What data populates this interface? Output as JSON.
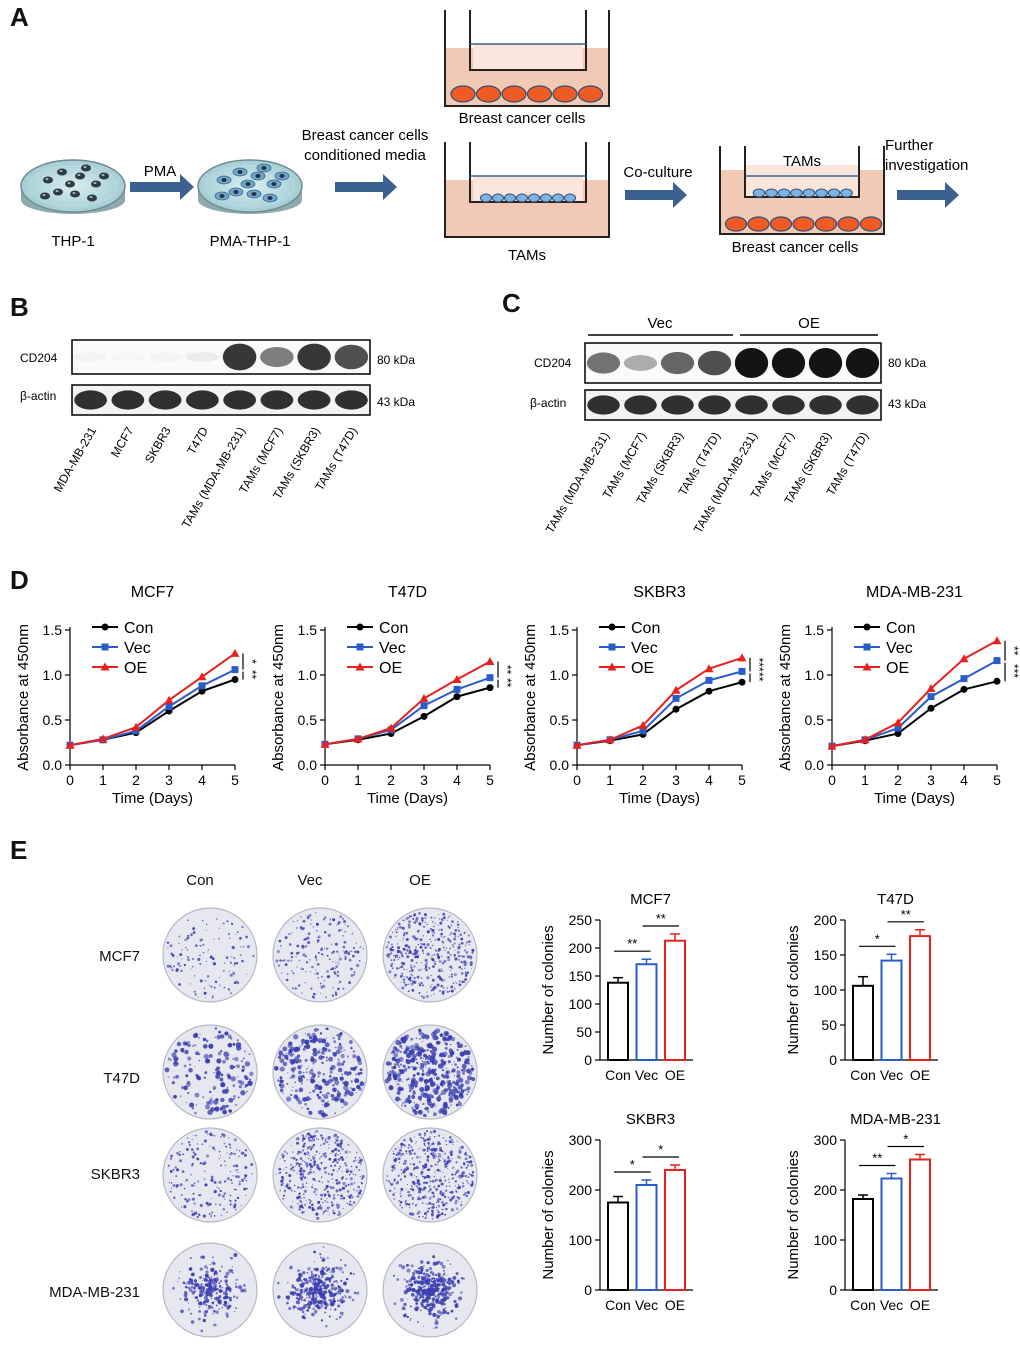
{
  "panels": {
    "a": "A",
    "b": "B",
    "c": "C",
    "d": "D",
    "e": "E"
  },
  "panel_a": {
    "thp1": "THP-1",
    "pma": "PMA",
    "pma_thp1": "PMA-THP-1",
    "conditioned_line1": "Breast cancer cells",
    "conditioned_line2": "conditioned media",
    "breast_cancer_cells_top": "Breast cancer cells",
    "tams": "TAMs",
    "coculture": "Co-culture",
    "tams_inner": "TAMs",
    "breast_cancer_cells_bottom": "Breast cancer cells",
    "further_line1": "Further",
    "further_line2": "investigation",
    "colors": {
      "dish": "#bfe0e4",
      "cell": "#2f3c46",
      "arrow": "#3a6190",
      "medium": "#f2c9b5",
      "tam": "#7fb2e0",
      "cancer": "#f05a24"
    }
  },
  "panel_b": {
    "cd204": "CD204",
    "actin": "β-actin",
    "kda80": "80 kDa",
    "kda43": "43 kDa",
    "lanes": [
      "MDA-MB-231",
      "MCF7",
      "SKBR3",
      "T47D",
      "TAMs (MDA-MB-231)",
      "TAMs (MCF7)",
      "TAMs (SKBR3)",
      "TAMs (T47D)"
    ],
    "cd204_intensity": [
      0.05,
      0.04,
      0.05,
      0.08,
      0.85,
      0.55,
      0.85,
      0.75
    ],
    "actin_intensity": [
      0.9,
      0.9,
      0.9,
      0.9,
      0.9,
      0.9,
      0.9,
      0.9
    ]
  },
  "panel_c": {
    "vec": "Vec",
    "oe": "OE",
    "cd204": "CD204",
    "actin": "β-actin",
    "kda80": "80 kDa",
    "kda43": "43 kDa",
    "lanes": [
      "TAMs (MDA-MB-231)",
      "TAMs (MCF7)",
      "TAMs (SKBR3)",
      "TAMs (T47D)",
      "TAMs (MDA-MB-231)",
      "TAMs (MCF7)",
      "TAMs (SKBR3)",
      "TAMs (T47D)"
    ],
    "cd204_intensity": [
      0.6,
      0.35,
      0.65,
      0.75,
      1.0,
      1.0,
      1.0,
      1.0
    ],
    "actin_intensity": [
      0.9,
      0.9,
      0.9,
      0.9,
      0.9,
      0.9,
      0.9,
      0.9
    ]
  },
  "chart_data": [
    {
      "type": "line",
      "title": "MCF7",
      "xlabel": "Time (Days)",
      "ylabel": "Absorbance at 450nm",
      "x": [
        0,
        1,
        2,
        3,
        4,
        5
      ],
      "xlim": [
        0,
        5
      ],
      "ylim": [
        0,
        1.5
      ],
      "yticks": [
        "0.0",
        "0.5",
        "1.0",
        "1.5"
      ],
      "series": [
        {
          "name": "Con",
          "values": [
            0.22,
            0.28,
            0.36,
            0.6,
            0.82,
            0.95
          ]
        },
        {
          "name": "Vec",
          "values": [
            0.22,
            0.28,
            0.38,
            0.65,
            0.88,
            1.06
          ]
        },
        {
          "name": "OE",
          "values": [
            0.22,
            0.29,
            0.42,
            0.72,
            0.98,
            1.24
          ]
        }
      ],
      "sig": [
        "*",
        "**"
      ]
    },
    {
      "type": "line",
      "title": "T47D",
      "xlabel": "Time (Days)",
      "ylabel": "Absorbance at 450nm",
      "x": [
        0,
        1,
        2,
        3,
        4,
        5
      ],
      "xlim": [
        0,
        5
      ],
      "ylim": [
        0,
        1.5
      ],
      "yticks": [
        "0.0",
        "0.5",
        "1.0",
        "1.5"
      ],
      "series": [
        {
          "name": "Con",
          "values": [
            0.23,
            0.28,
            0.35,
            0.54,
            0.76,
            0.86
          ]
        },
        {
          "name": "Vec",
          "values": [
            0.23,
            0.29,
            0.39,
            0.66,
            0.84,
            0.97
          ]
        },
        {
          "name": "OE",
          "values": [
            0.23,
            0.29,
            0.41,
            0.74,
            0.95,
            1.15
          ]
        }
      ],
      "sig": [
        "**",
        "**"
      ]
    },
    {
      "type": "line",
      "title": "SKBR3",
      "xlabel": "Time (Days)",
      "ylabel": "Absorbance at 450nm",
      "x": [
        0,
        1,
        2,
        3,
        4,
        5
      ],
      "xlim": [
        0,
        5
      ],
      "ylim": [
        0,
        1.5
      ],
      "yticks": [
        "0.0",
        "0.5",
        "1.0",
        "1.5"
      ],
      "series": [
        {
          "name": "Con",
          "values": [
            0.22,
            0.27,
            0.34,
            0.62,
            0.82,
            0.92
          ]
        },
        {
          "name": "Vec",
          "values": [
            0.22,
            0.28,
            0.38,
            0.74,
            0.94,
            1.04
          ]
        },
        {
          "name": "OE",
          "values": [
            0.22,
            0.28,
            0.44,
            0.83,
            1.07,
            1.19
          ]
        }
      ],
      "sig": [
        "***",
        "**"
      ]
    },
    {
      "type": "line",
      "title": "MDA-MB-231",
      "xlabel": "Time (Days)",
      "ylabel": "Absorbance at 450nm",
      "x": [
        0,
        1,
        2,
        3,
        4,
        5
      ],
      "xlim": [
        0,
        5
      ],
      "ylim": [
        0,
        1.5
      ],
      "yticks": [
        "0.0",
        "0.5",
        "1.0",
        "1.5"
      ],
      "series": [
        {
          "name": "Con",
          "values": [
            0.21,
            0.27,
            0.35,
            0.63,
            0.84,
            0.93
          ]
        },
        {
          "name": "Vec",
          "values": [
            0.21,
            0.28,
            0.41,
            0.76,
            0.96,
            1.16
          ]
        },
        {
          "name": "OE",
          "values": [
            0.21,
            0.28,
            0.47,
            0.85,
            1.18,
            1.38
          ]
        }
      ],
      "sig": [
        "**",
        "***"
      ]
    },
    {
      "type": "bar",
      "title": "MCF7",
      "ylabel": "Number of colonies",
      "categories": [
        "Con",
        "Vec",
        "OE"
      ],
      "values": [
        138,
        171,
        213
      ],
      "errors": [
        9,
        9,
        12
      ],
      "ylim": [
        0,
        250
      ],
      "yticks": [
        "0",
        "50",
        "100",
        "150",
        "200",
        "250"
      ],
      "sig": [
        "**",
        "**"
      ]
    },
    {
      "type": "bar",
      "title": "T47D",
      "ylabel": "Number of colonies",
      "categories": [
        "Con",
        "Vec",
        "OE"
      ],
      "values": [
        106,
        142,
        177
      ],
      "errors": [
        13,
        9,
        9
      ],
      "ylim": [
        0,
        200
      ],
      "yticks": [
        "0",
        "50",
        "100",
        "150",
        "200"
      ],
      "sig": [
        "*",
        "**"
      ]
    },
    {
      "type": "bar",
      "title": "SKBR3",
      "ylabel": "Number of colonies",
      "categories": [
        "Con",
        "Vec",
        "OE"
      ],
      "values": [
        175,
        210,
        240
      ],
      "errors": [
        12,
        10,
        10
      ],
      "ylim": [
        0,
        300
      ],
      "yticks": [
        "0",
        "100",
        "200",
        "300"
      ],
      "sig": [
        "*",
        "*"
      ]
    },
    {
      "type": "bar",
      "title": "MDA-MB-231",
      "ylabel": "Number of colonies",
      "categories": [
        "Con",
        "Vec",
        "OE"
      ],
      "values": [
        182,
        223,
        261
      ],
      "errors": [
        8,
        10,
        10
      ],
      "ylim": [
        0,
        300
      ],
      "yticks": [
        "0",
        "100",
        "200",
        "300"
      ],
      "sig": [
        "**",
        "*"
      ]
    }
  ],
  "panel_e": {
    "col_headers": [
      "Con",
      "Vec",
      "OE"
    ],
    "row_labels": [
      "MCF7",
      "T47D",
      "SKBR3",
      "MDA-MB-231"
    ],
    "colony_density": [
      [
        0.15,
        0.3,
        0.8
      ],
      [
        0.25,
        0.5,
        0.9
      ],
      [
        0.3,
        0.8,
        0.95
      ],
      [
        0.45,
        0.7,
        0.75
      ]
    ]
  },
  "series_colors": {
    "Con": "#000000",
    "Vec": "#2a5cc9",
    "OE": "#e8201e"
  },
  "colony_color": "#3b3fb0"
}
